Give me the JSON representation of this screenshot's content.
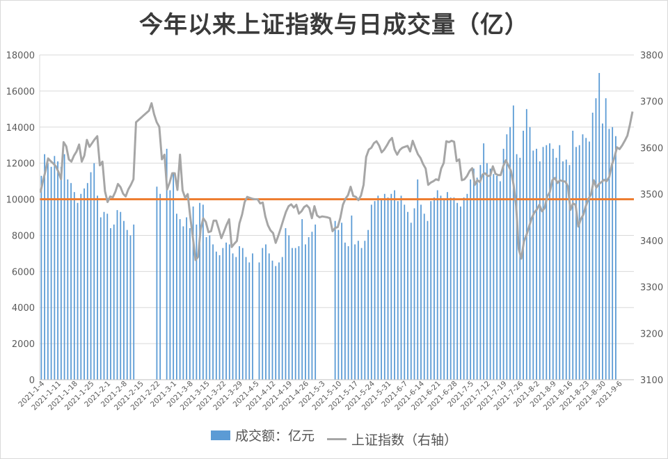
{
  "title": "今年以来上证指数与日成交量（亿）",
  "colors": {
    "bar": "#5b9bd5",
    "line": "#a6a6a6",
    "ref": "#ed7d31",
    "grid": "#d9d9d9",
    "axis_text": "#595959"
  },
  "legend": {
    "bar_label": "成交额：亿元",
    "line_label": "上证指数（右轴）"
  },
  "chart_data": {
    "type": "bar+line",
    "title": "今年以来上证指数与日成交量（亿）",
    "legend_position": "bottom",
    "grid": true,
    "y_left": {
      "min": 0,
      "max": 18000,
      "ticks": [
        "0",
        "2000",
        "4000",
        "6000",
        "8000",
        "10000",
        "12000",
        "14000",
        "16000",
        "18000"
      ]
    },
    "y_right": {
      "min": 3100,
      "max": 3800,
      "ticks": [
        "3100",
        "3200",
        "3300",
        "3400",
        "3500",
        "3600",
        "3700",
        "3800"
      ]
    },
    "x_tick_labels": [
      "2021-1-4",
      "2021-1-11",
      "2021-1-18",
      "2021-1-25",
      "2021-2-1",
      "2021-2-8",
      "2021-2-15",
      "2021-2-22",
      "2021-3-1",
      "2021-3-8",
      "2021-3-15",
      "2021-3-22",
      "2021-3-29",
      "2021-4-5",
      "2021-4-12",
      "2021-4-19",
      "2021-4-26",
      "2021-5-3",
      "2021-5-10",
      "2021-5-17",
      "2021-5-24",
      "2021-5-31",
      "2021-6-7",
      "2021-6-14",
      "2021-6-21",
      "2021-6-28",
      "2021-7-5",
      "2021-7-12",
      "2021-7-19",
      "2021-7-26",
      "2021-8-2",
      "2021-8-9",
      "2021-8-16",
      "2021-8-23",
      "2021-8-30",
      "2021-9-6"
    ],
    "reference_line": {
      "axis": "left",
      "value": 10000
    },
    "series": [
      {
        "name": "成交额：亿元",
        "type": "bar",
        "axis": "left",
        "values": [
          [
            11300,
            12500,
            12000,
            11800,
            12400
          ],
          [
            12100,
            11800,
            12500,
            11100,
            10900
          ],
          [
            10400,
            9800,
            10300,
            10600,
            10900
          ],
          [
            11500,
            12000,
            10200,
            9000,
            9300
          ],
          [
            9200,
            8400,
            8600,
            9400,
            9300
          ],
          [
            8800,
            8300,
            8000,
            8600,
            null
          ],
          [
            null,
            null,
            null,
            null,
            null
          ],
          [
            10700,
            10300,
            null,
            12800,
            10500
          ],
          [
            11500,
            9200,
            8900,
            8500,
            9000
          ],
          [
            8400,
            9600,
            8600,
            9800,
            9700
          ],
          [
            7900,
            8000,
            7500,
            7100,
            6900
          ],
          [
            7300,
            7600,
            7500,
            7000,
            6800
          ],
          [
            7400,
            7300,
            6800,
            6500,
            7000
          ],
          [
            null,
            6500,
            7300,
            7500,
            7000
          ],
          [
            6600,
            6300,
            6500,
            6800,
            8400
          ],
          [
            8000,
            7300,
            7300,
            7400,
            8900
          ],
          [
            7500,
            7900,
            8200,
            8600,
            null
          ],
          [
            null,
            null,
            null,
            null,
            8800
          ],
          [
            8300,
            8700,
            7600,
            7400,
            9100
          ],
          [
            7500,
            7700,
            7300,
            7700,
            8300
          ],
          [
            9700,
            9900,
            10200,
            10000,
            10300
          ],
          [
            10100,
            10300,
            10500,
            9900,
            10200
          ],
          [
            9700,
            9300,
            8700,
            9500,
            11100
          ],
          [
            9700,
            9200,
            8800,
            9900,
            10100
          ],
          [
            10500,
            10200,
            10000,
            10400,
            10100
          ],
          [
            10100,
            9800,
            9600,
            10100,
            10300
          ],
          [
            11100,
            11700,
            11200,
            11900,
            13100
          ],
          [
            12000,
            11700,
            11400,
            11300,
            11000
          ],
          [
            12800,
            13600,
            14000,
            15200,
            12500
          ],
          [
            12300,
            13800,
            15000,
            14000,
            12700
          ],
          [
            12800,
            12100,
            12900,
            13000,
            13100
          ],
          [
            12800,
            12300,
            13000,
            12100,
            12200
          ],
          [
            11900,
            13800,
            12900,
            13000,
            13600
          ],
          [
            13400,
            13200,
            14800,
            15600,
            17000
          ],
          [
            14200,
            15600,
            13900,
            14000,
            13500
          ],
          [
            null,
            null,
            null,
            null,
            null
          ]
        ]
      },
      {
        "name": "上证指数（右轴）",
        "type": "line",
        "axis": "right",
        "values": [
          3503,
          3528,
          3550,
          3577,
          3571,
          3566,
          3560,
          3548,
          3532,
          3612,
          3603,
          3575,
          3570,
          3583,
          3592,
          3607,
          3570,
          3583,
          3617,
          3602,
          3610,
          3618,
          3625,
          3562,
          3570,
          3506,
          3483,
          3495,
          3493,
          3505,
          3522,
          3515,
          3501,
          3495,
          3510,
          3520,
          3532,
          3655,
          3660,
          3665,
          3670,
          3675,
          3680,
          3696,
          3672,
          3655,
          3645,
          3575,
          3585,
          3510,
          3525,
          3545,
          3545,
          3509,
          3585,
          3508,
          3492,
          3500,
          3450,
          3405,
          3358,
          3365,
          3425,
          3448,
          3440,
          3418,
          3420,
          3443,
          3443,
          3425,
          3405,
          3419,
          3434,
          3446,
          3386,
          3393,
          3399,
          3437,
          3456,
          3483,
          3494,
          3492,
          3490,
          3489,
          3489,
          3480,
          3482,
          3452,
          3433,
          3422,
          3416,
          3395,
          3410,
          3427,
          3445,
          3462,
          3474,
          3478,
          3471,
          3477,
          3458,
          3463,
          3472,
          3476,
          3470,
          3448,
          3474,
          3454,
          3450,
          3452,
          3451,
          3450,
          3448,
          3420,
          3427,
          3429,
          3449,
          3477,
          3490,
          3498,
          3516,
          3496,
          3494,
          3487,
          3497,
          3520,
          3580,
          3596,
          3600,
          3610,
          3614,
          3605,
          3590,
          3596,
          3605,
          3615,
          3621,
          3596,
          3585,
          3595,
          3600,
          3602,
          3604,
          3592,
          3615,
          3600,
          3586,
          3578,
          3565,
          3555,
          3520,
          3525,
          3528,
          3532,
          3530,
          3555,
          3567,
          3614,
          3612,
          3615,
          3613,
          3571,
          3575,
          3530,
          3532,
          3539,
          3550,
          3556,
          3520,
          3530,
          3526,
          3542,
          3545,
          3539,
          3540,
          3560,
          3544,
          3541,
          3541,
          3560,
          3573,
          3562,
          3550,
          3520,
          3474,
          3382,
          3361,
          3398,
          3412,
          3430,
          3448,
          3460,
          3467,
          3477,
          3463,
          3470,
          3495,
          3504,
          3530,
          3535,
          3524,
          3530,
          3528,
          3527,
          3517,
          3466,
          3480,
          3477,
          3430,
          3446,
          3456,
          3475,
          3490,
          3500,
          3530,
          3514,
          3522,
          3526,
          3531,
          3528,
          3537,
          3563,
          3579,
          3601,
          3597,
          3605,
          3615,
          3626,
          3650,
          3678
        ]
      }
    ]
  }
}
